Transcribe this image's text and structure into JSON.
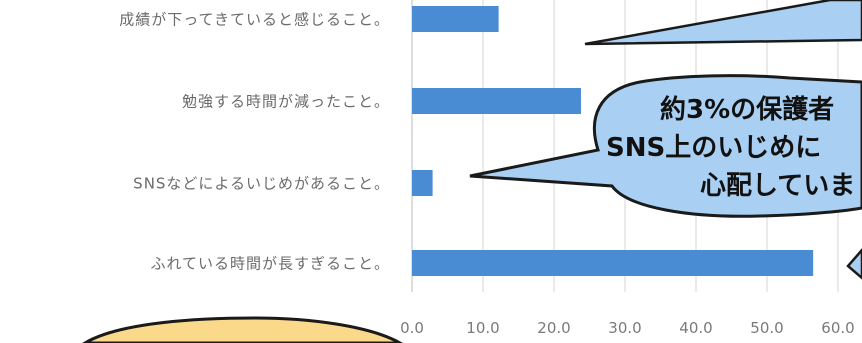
{
  "chart_data": {
    "type": "bar",
    "orientation": "horizontal",
    "categories": [
      "成績が下ってきていると感じること。",
      "勉強する時間が減ったこと。",
      "SNSなどによるいじめがあること。",
      "ふれている時間が長すぎること。"
    ],
    "values": [
      12.2,
      23.8,
      2.9,
      56.5
    ],
    "xlim": [
      0,
      60
    ],
    "xticks": [
      "0.0",
      "10.0",
      "20.0",
      "30.0",
      "40.0",
      "50.0",
      "60.0"
    ],
    "grid": true,
    "bar_color": "#4a8cd4",
    "title": "",
    "xlabel": "",
    "ylabel": ""
  },
  "callout": {
    "lines": [
      "約3%の保護者",
      "SNS上のいじめに",
      "心配していま"
    ],
    "fill_color": "#a9cff2",
    "stroke_color": "#1a1a1a"
  },
  "colors": {
    "grid": "#d4d4d4",
    "tick_label": "#7a7a7a",
    "yellow_bubble": "#fbd98a"
  }
}
